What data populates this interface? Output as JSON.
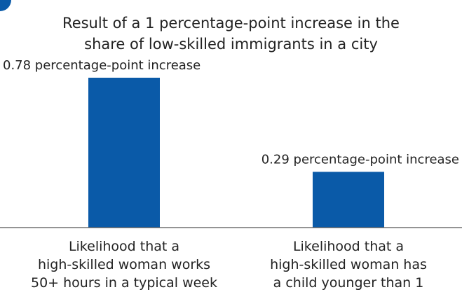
{
  "chart_data": {
    "type": "bar",
    "title": [
      "Result of a 1 percentage-point increase in the",
      "share of low-skilled immigrants in a city"
    ],
    "categories": [
      [
        "Likelihood that a",
        "high-skilled woman works",
        "50+ hours in a typical week"
      ],
      [
        "Likelihood that a",
        "high-skilled woman has",
        "a child younger than 1"
      ]
    ],
    "values": [
      0.78,
      0.29
    ],
    "data_labels": [
      "0.78 percentage-point increase",
      "0.29 percentage-point increase"
    ],
    "xlabel": "",
    "ylabel": "",
    "ylim": [
      0,
      0.82
    ],
    "grid": false,
    "legend": "none",
    "bar_color": "#0a5aa8"
  }
}
